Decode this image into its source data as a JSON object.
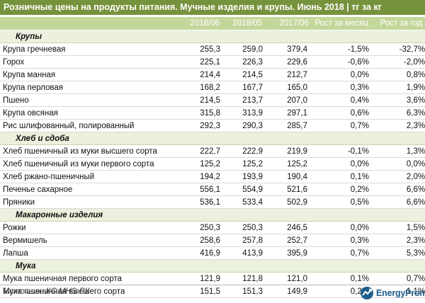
{
  "title": "Розничные цены на продукты питания. Мучные изделия и крупы. Июнь 2018 | тг за кг",
  "columns": [
    "2018/06",
    "2018/05",
    "2017/06",
    "Рост за месяц",
    "Рост за год"
  ],
  "sections": [
    {
      "name": "Крупы",
      "rows": [
        {
          "name": "Крупа гречневая",
          "v": [
            "255,3",
            "259,0",
            "379,4",
            "-1,5%",
            "-32,7%"
          ]
        },
        {
          "name": "Горох",
          "v": [
            "225,1",
            "226,3",
            "229,6",
            "-0,6%",
            "-2,0%"
          ]
        },
        {
          "name": "Крупа манная",
          "v": [
            "214,4",
            "214,5",
            "212,7",
            "0,0%",
            "0,8%"
          ]
        },
        {
          "name": "Крупа перловая",
          "v": [
            "168,2",
            "167,7",
            "165,0",
            "0,3%",
            "1,9%"
          ]
        },
        {
          "name": "Пшено",
          "v": [
            "214,5",
            "213,7",
            "207,0",
            "0,4%",
            "3,6%"
          ]
        },
        {
          "name": "Крупа овсяная",
          "v": [
            "315,8",
            "313,9",
            "297,1",
            "0,6%",
            "6,3%"
          ]
        },
        {
          "name": "Рис шлифованный, полированный",
          "v": [
            "292,3",
            "290,3",
            "285,7",
            "0,7%",
            "2,3%"
          ]
        }
      ]
    },
    {
      "name": "Хлеб и сдоба",
      "rows": [
        {
          "name": "Хлеб пшеничный из муки высшего сорта",
          "v": [
            "222,7",
            "222,9",
            "219,9",
            "-0,1%",
            "1,3%"
          ]
        },
        {
          "name": "Хлеб пшеничный из муки первого сорта",
          "v": [
            "125,2",
            "125,2",
            "125,2",
            "0,0%",
            "0,0%"
          ]
        },
        {
          "name": "Хлеб ржано-пшеничный",
          "v": [
            "194,2",
            "193,9",
            "190,4",
            "0,1%",
            "2,0%"
          ]
        },
        {
          "name": "Печенье сахарное",
          "v": [
            "556,1",
            "554,9",
            "521,6",
            "0,2%",
            "6,6%"
          ]
        },
        {
          "name": "Пряники",
          "v": [
            "536,1",
            "533,4",
            "502,9",
            "0,5%",
            "6,6%"
          ]
        }
      ]
    },
    {
      "name": "Макаронные изделия",
      "rows": [
        {
          "name": "Рожки",
          "v": [
            "250,3",
            "250,3",
            "246,5",
            "0,0%",
            "1,5%"
          ]
        },
        {
          "name": "Вермишель",
          "v": [
            "258,6",
            "257,8",
            "252,7",
            "0,3%",
            "2,3%"
          ]
        },
        {
          "name": "Лапша",
          "v": [
            "416,9",
            "413,9",
            "395,9",
            "0,7%",
            "5,3%"
          ]
        }
      ]
    },
    {
      "name": "Мука",
      "rows": [
        {
          "name": "Мука пшеничная первого сорта",
          "v": [
            "121,9",
            "121,8",
            "121,0",
            "0,1%",
            "0,7%"
          ]
        },
        {
          "name": "Мука пшеничная высшего сорта",
          "v": [
            "151,5",
            "151,3",
            "149,9",
            "0,2%",
            "1,1%"
          ]
        }
      ]
    }
  ],
  "source": "Источник: КС МНЭ РК",
  "logo": {
    "text": "EnergyProm",
    "icon": "energyprom-logo-icon",
    "color": "#1f5d8c"
  },
  "colors": {
    "title_bg": "#76923c",
    "header_bg": "#c4d79b",
    "section_bg": "#ebf1de"
  }
}
